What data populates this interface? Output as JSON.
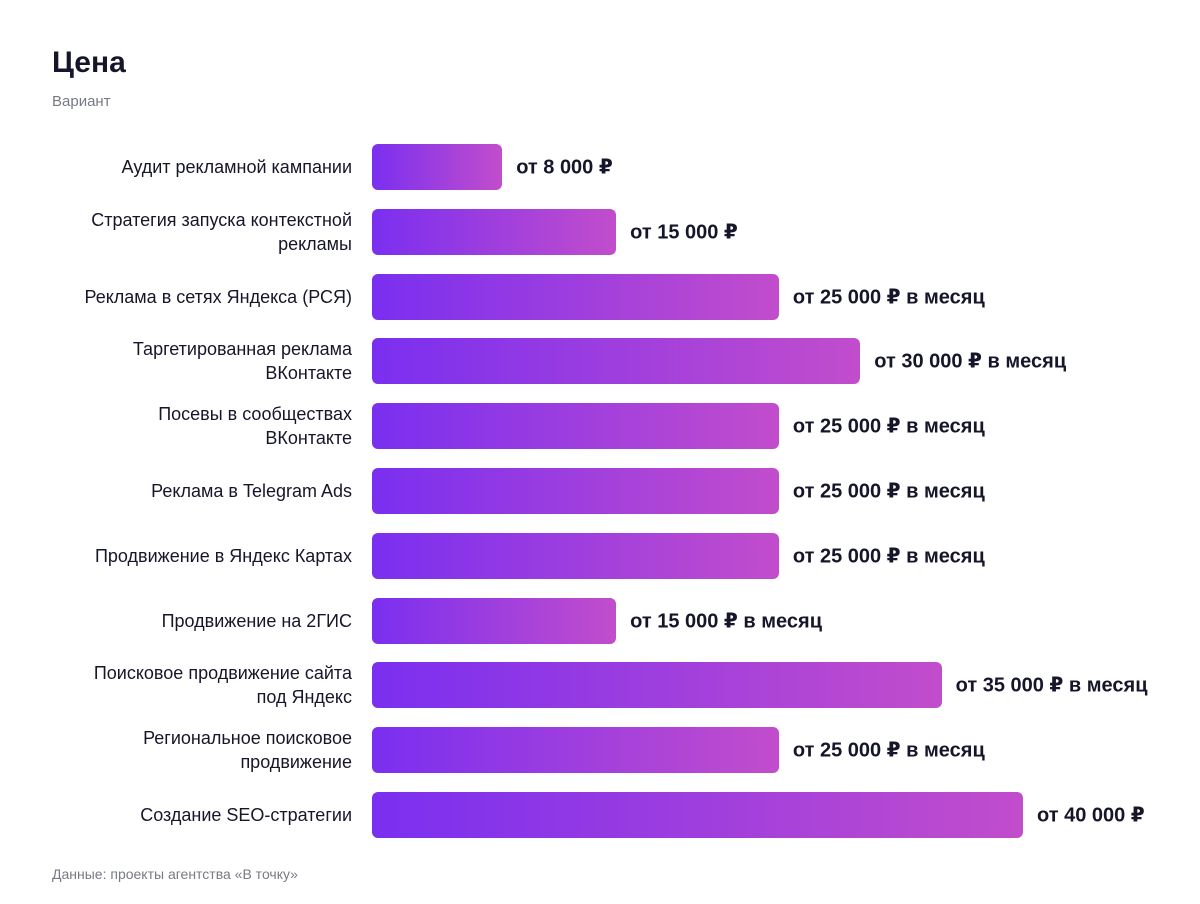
{
  "chart_data": {
    "type": "bar",
    "orientation": "horizontal",
    "title": "Цена",
    "subtitle": "Вариант",
    "categories": [
      "Аудит рекламной кампании",
      "Стратегия запуска контекстной\nрекламы",
      "Реклама в сетях Яндекса (РСЯ)",
      "Таргетированная реклама\nВКонтакте",
      "Посевы в сообществах\nВКонтакте",
      "Реклама в Telegram Ads",
      "Продвижение в Яндекс Картах",
      "Продвижение на 2ГИС",
      "Поисковое продвижение сайта\nпод Яндекс",
      "Региональное поисковое\nпродвижение",
      "Создание SEO-стратегии"
    ],
    "values": [
      8000,
      15000,
      25000,
      30000,
      25000,
      25000,
      25000,
      15000,
      35000,
      25000,
      40000
    ],
    "value_labels": [
      "от 8 000 ₽",
      "от 15 000 ₽",
      "от 25 000 ₽ в месяц",
      "от 30 000 ₽ в месяц",
      "от 25 000 ₽ в месяц",
      "от 25 000 ₽ в месяц",
      "от 25 000 ₽ в месяц",
      "от 15 000 ₽ в месяц",
      "от 35 000 ₽ в месяц",
      "от 25 000 ₽ в месяц",
      "от 40 000 ₽"
    ],
    "color": [
      "#7a2ff0",
      "#c24dcc"
    ],
    "source": "Данные: проекты агентства «В точку»"
  }
}
